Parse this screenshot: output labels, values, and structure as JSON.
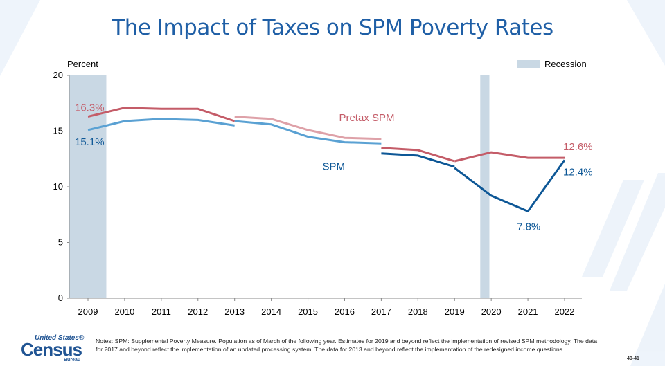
{
  "title": "The Impact of Taxes on SPM Poverty Rates",
  "colors": {
    "pretax": "#c45c68",
    "pretax_light": "#dea1a8",
    "spm": "#0d5796",
    "spm_light": "#5aa1d3",
    "recession": "#c9d8e4",
    "title": "#1f5fa6"
  },
  "legend": {
    "recession_label": "Recession"
  },
  "chart_data": {
    "type": "line",
    "ylabel": "Percent",
    "ylim": [
      0,
      20
    ],
    "yticks": [
      "0",
      "5",
      "10",
      "15",
      "20"
    ],
    "categories": [
      "2009",
      "2010",
      "2011",
      "2012",
      "2013",
      "2014",
      "2015",
      "2016",
      "2017",
      "2018",
      "2019",
      "2020",
      "2021",
      "2022"
    ],
    "recessions": [
      {
        "x_start": 2009.0,
        "x_end": 2009.5
      },
      {
        "x_start": 2019.7,
        "x_end": 2019.95
      }
    ],
    "series": [
      {
        "name": "Pretax SPM",
        "segments": [
          {
            "x": [
              2009,
              2010,
              2011,
              2012,
              2013
            ],
            "y": [
              16.3,
              17.1,
              17.0,
              17.0,
              15.9
            ],
            "style": "dark"
          },
          {
            "x": [
              2013,
              2014,
              2015,
              2016,
              2017
            ],
            "y": [
              16.3,
              16.1,
              15.1,
              14.4,
              14.3
            ],
            "style": "light"
          },
          {
            "x": [
              2017,
              2018,
              2019
            ],
            "y": [
              13.5,
              13.3,
              12.3
            ],
            "style": "dark"
          },
          {
            "x": [
              2019,
              2020,
              2021,
              2022
            ],
            "y": [
              12.3,
              13.1,
              12.6,
              12.6
            ],
            "style": "dark"
          }
        ]
      },
      {
        "name": "SPM",
        "segments": [
          {
            "x": [
              2009,
              2010,
              2011,
              2012,
              2013
            ],
            "y": [
              15.1,
              15.9,
              16.1,
              16.0,
              15.5
            ],
            "style": "light"
          },
          {
            "x": [
              2013,
              2014,
              2015,
              2016,
              2017
            ],
            "y": [
              15.9,
              15.6,
              14.5,
              14.0,
              13.9
            ],
            "style": "light"
          },
          {
            "x": [
              2017,
              2018,
              2019
            ],
            "y": [
              13.0,
              12.8,
              11.8
            ],
            "style": "dark"
          },
          {
            "x": [
              2019,
              2020,
              2021,
              2022
            ],
            "y": [
              11.7,
              9.2,
              7.8,
              12.4
            ],
            "style": "dark"
          }
        ]
      }
    ],
    "annotations": [
      {
        "text": "16.3%",
        "series": "Pretax SPM",
        "x": 2009,
        "y": 16.3
      },
      {
        "text": "15.1%",
        "series": "SPM",
        "x": 2009,
        "y": 15.1
      },
      {
        "text": "Pretax SPM",
        "series": "Pretax SPM",
        "x": 2016,
        "y": 16.1
      },
      {
        "text": "SPM",
        "series": "SPM",
        "x": 2016,
        "y": 12.9
      },
      {
        "text": "12.6%",
        "series": "Pretax SPM",
        "x": 2022,
        "y": 12.6
      },
      {
        "text": "12.4%",
        "series": "SPM",
        "x": 2022,
        "y": 12.4
      },
      {
        "text": "7.8%",
        "series": "SPM",
        "x": 2021,
        "y": 7.8
      }
    ],
    "grid": false,
    "legend_position": "top-right"
  },
  "footer": {
    "logo_united_states": "United States®",
    "logo_census": "Census",
    "logo_bureau": "Bureau",
    "notes": "Notes: SPM: Supplemental Poverty Measure. Population as of March of the following year. Estimates for 2019 and beyond reflect the implementation of revised SPM methodology. The data for 2017 and beyond reflect the implementation of an updated processing system. The data for 2013 and beyond reflect the implementation of the redesigned income questions.",
    "page_number": "40-41"
  }
}
